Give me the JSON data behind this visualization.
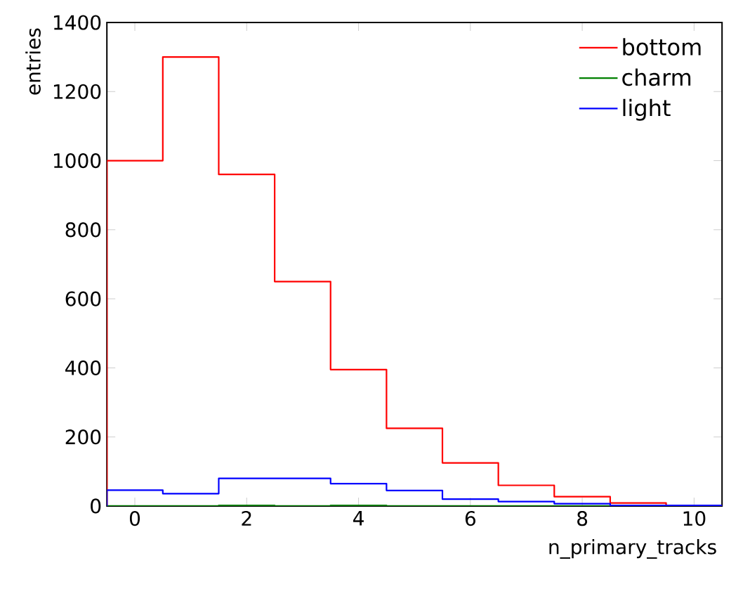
{
  "chart_data": {
    "type": "histogram",
    "xlabel": "n_primary_tracks",
    "ylabel": "entries",
    "bins": [
      -0.5,
      0.5,
      1.5,
      2.5,
      3.5,
      4.5,
      5.5,
      6.5,
      7.5,
      8.5,
      9.5,
      10.5
    ],
    "series": [
      {
        "name": "bottom",
        "color": "#ff0000",
        "values": [
          1000,
          1300,
          960,
          650,
          395,
          225,
          125,
          60,
          27,
          9,
          2
        ]
      },
      {
        "name": "charm",
        "color": "#008000",
        "values": [
          0,
          0,
          2,
          0,
          2,
          0,
          0,
          0,
          0,
          0,
          0
        ]
      },
      {
        "name": "light",
        "color": "#0000ff",
        "values": [
          46,
          36,
          80,
          80,
          65,
          45,
          20,
          13,
          7,
          2,
          2
        ]
      }
    ],
    "xlim": [
      -0.5,
      10.5
    ],
    "ylim": [
      0,
      1400
    ],
    "xticks": [
      0,
      2,
      4,
      6,
      8,
      10
    ],
    "yticks": [
      0,
      200,
      400,
      600,
      800,
      1000,
      1200,
      1400
    ],
    "legend": "top right",
    "marker": "none",
    "line_style": "solid"
  }
}
